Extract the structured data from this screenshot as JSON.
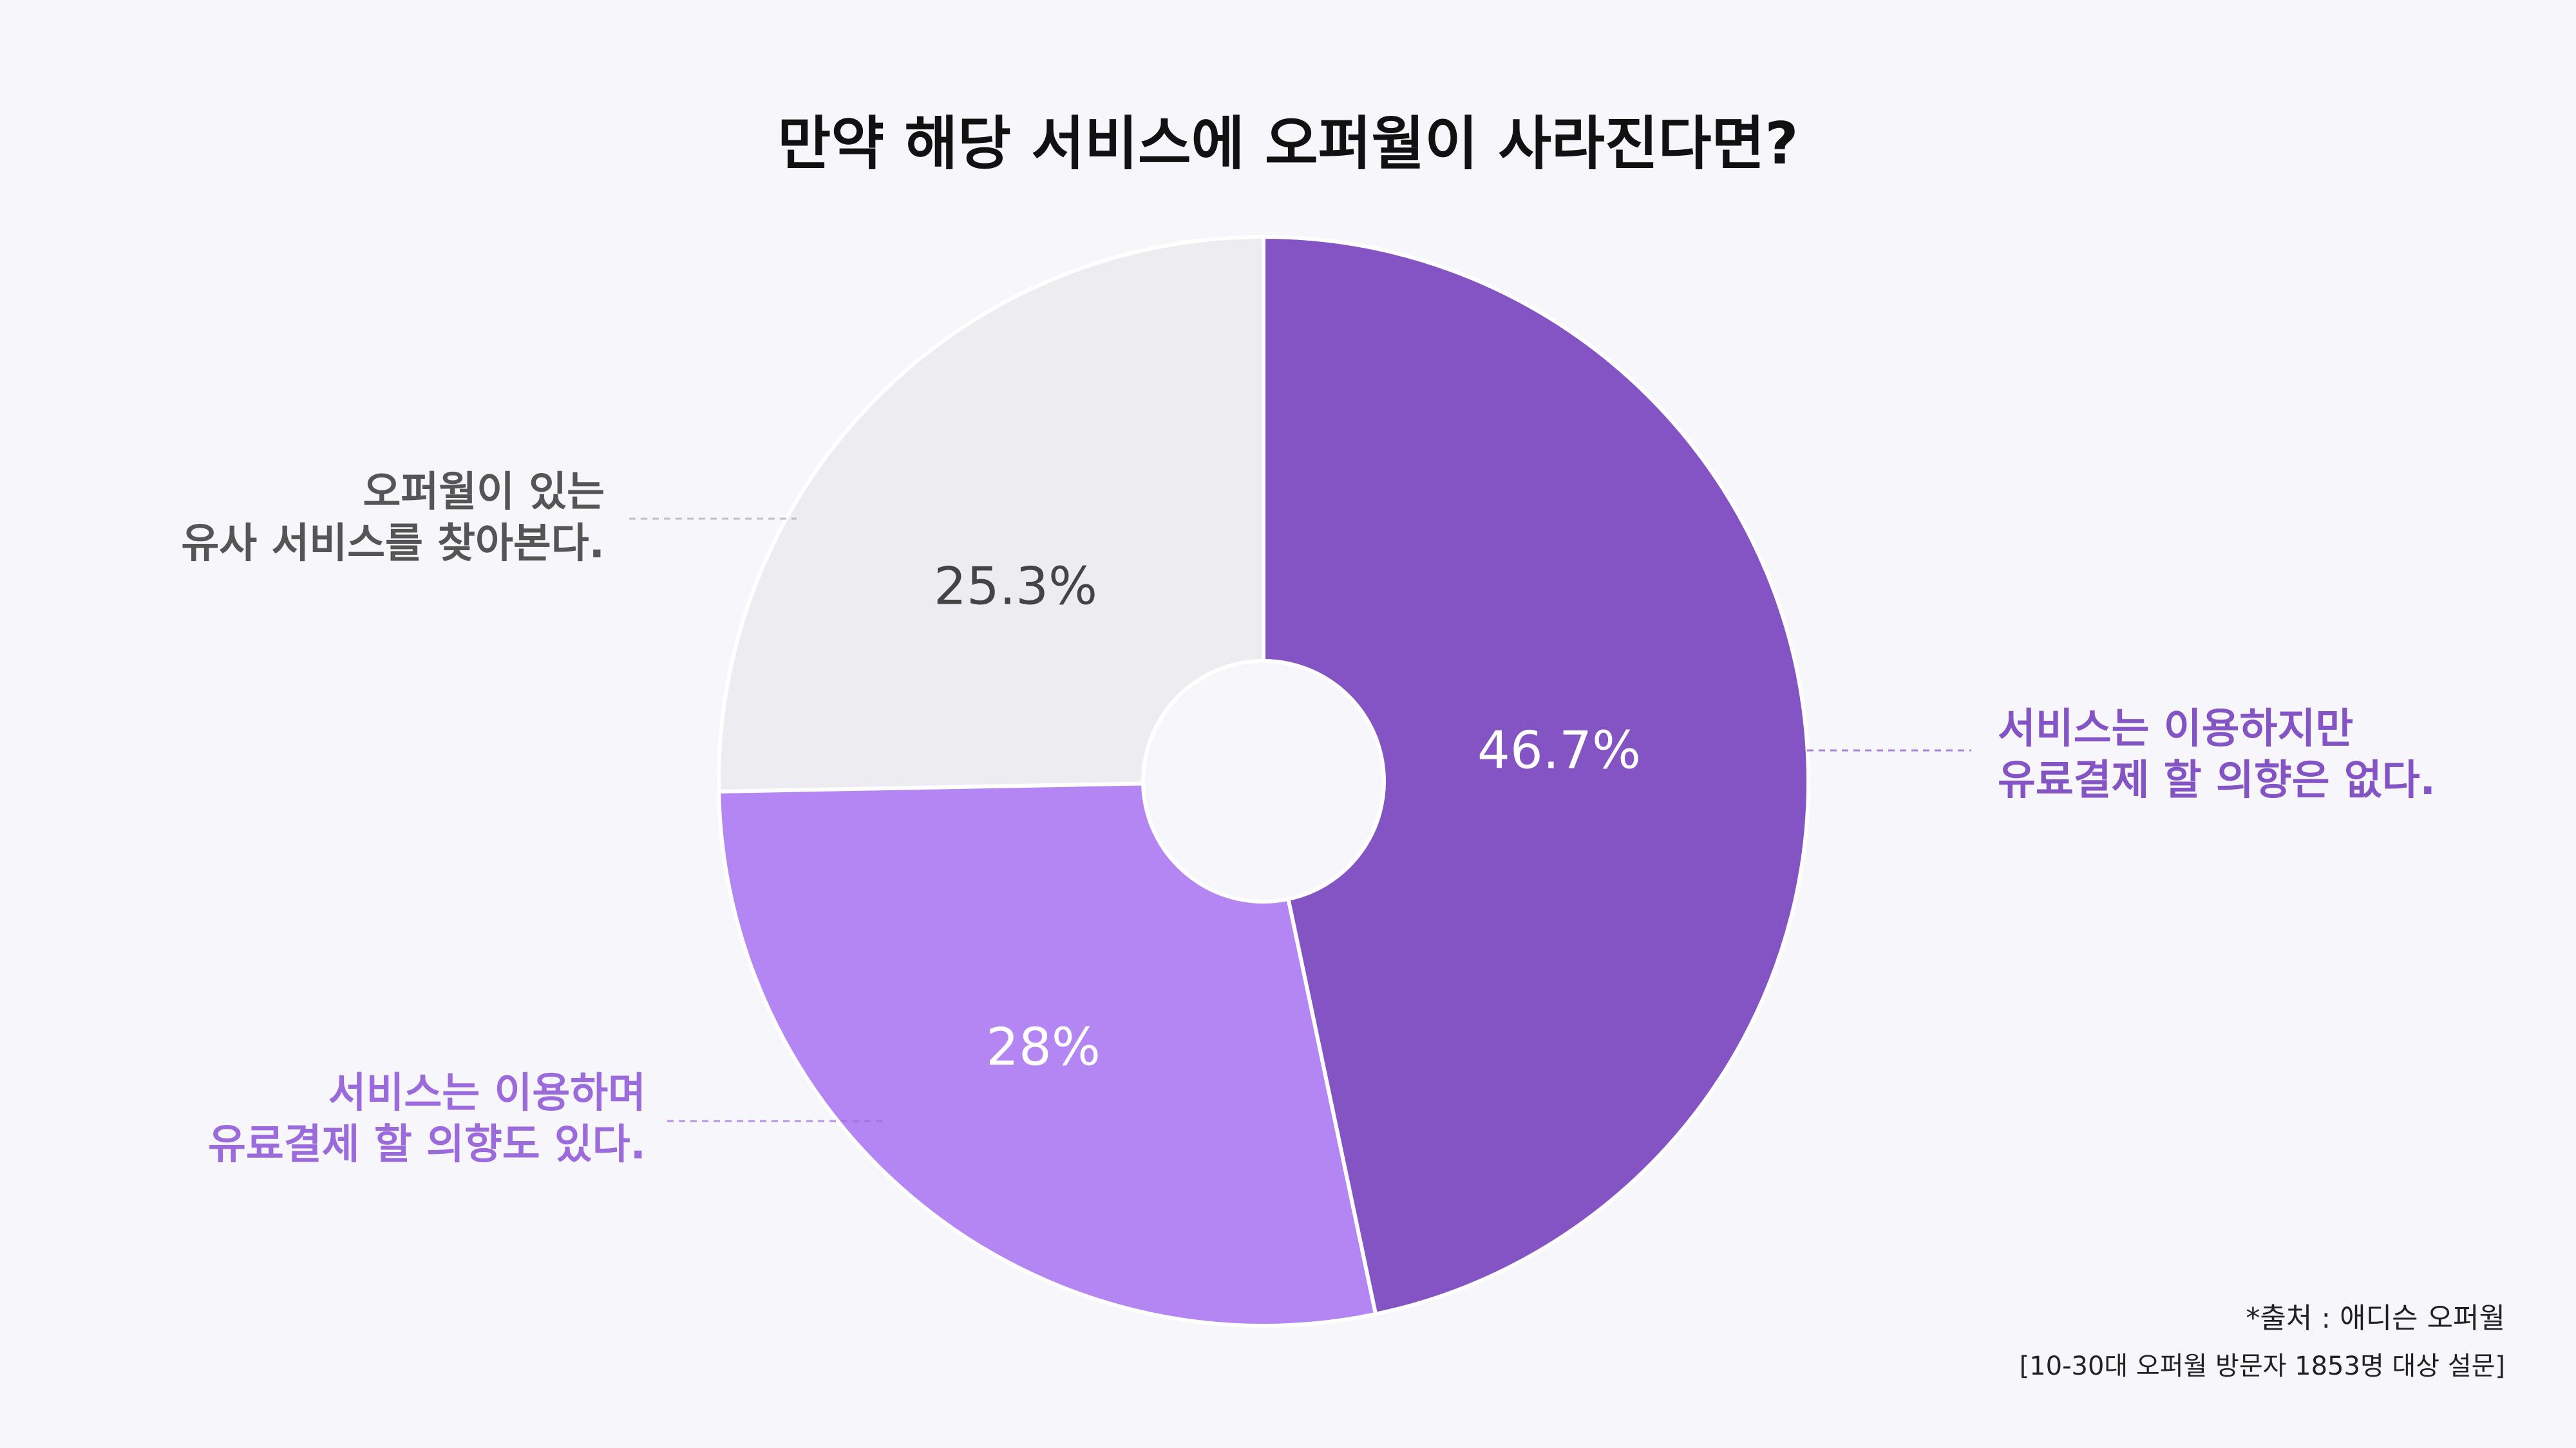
{
  "chart_data": {
    "type": "pie",
    "title": "만약 해당 서비스에 오퍼월이 사라진다면?",
    "slices": [
      {
        "label_lines": [
          "서비스는 이용하지만",
          "유료결제 할 의향은 없다."
        ],
        "value": 46.7,
        "value_label": "46.7%",
        "color": "#8454c4",
        "label_color": "#8454c4",
        "value_color": "#ffffff"
      },
      {
        "label_lines": [
          "서비스는 이용하며",
          "유료결제 할 의향도 있다."
        ],
        "value": 28,
        "value_label": "28%",
        "color": "#b386f3",
        "label_color": "#9b6bdc",
        "value_color": "#ffffff"
      },
      {
        "label_lines": [
          "오퍼월이 있는",
          "유사 서비스를 찾아본다."
        ],
        "value": 25.3,
        "value_label": "25.3%",
        "color": "#ededf1",
        "label_color": "#555555",
        "value_color": "#444444"
      }
    ],
    "donut": true,
    "start": "12 o'clock, clockwise"
  },
  "source": {
    "line1": "*출처 : 애디슨 오퍼월",
    "line2": "[10-30대 오퍼월 방문자 1853명 대상 설문]"
  }
}
